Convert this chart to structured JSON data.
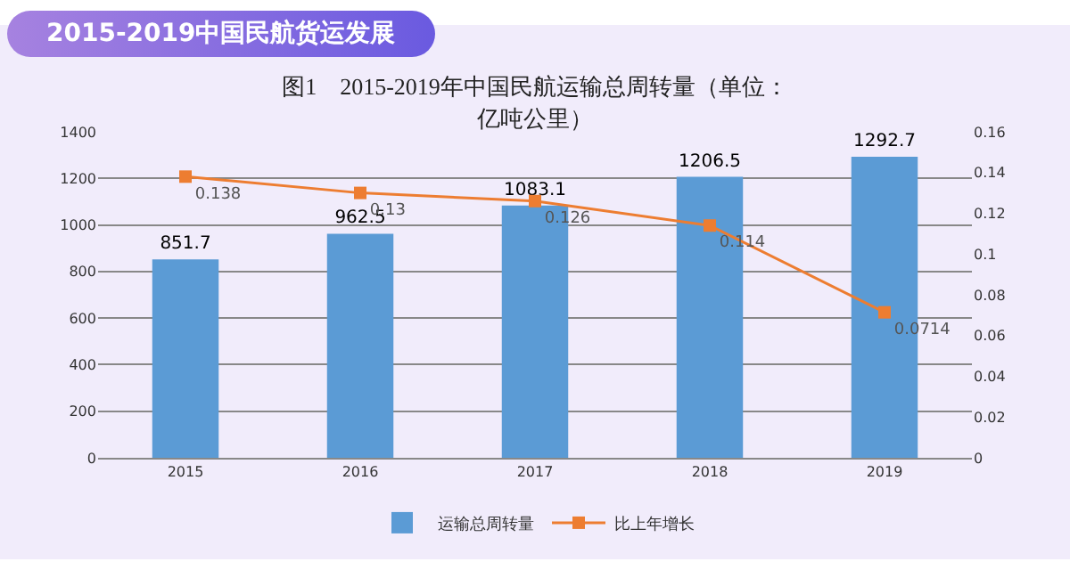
{
  "chart_data": {
    "type": "bar",
    "title": "2015-2019中国民航货运发展",
    "subtitle": "图1　2015-2019年中国民航运输总周转量（单位：亿吨公里）",
    "categories": [
      "2015",
      "2016",
      "2017",
      "2018",
      "2019"
    ],
    "series": [
      {
        "name": "运输总周转量",
        "color": "#5b9bd5",
        "values": [
          851.7,
          962.5,
          1083.1,
          1206.5,
          1292.7
        ]
      },
      {
        "name": "比上年增长",
        "type": "line",
        "axis": "y2",
        "color": "#ed7d31",
        "values": [
          0.138,
          0.13,
          0.126,
          0.114,
          0.0714
        ]
      }
    ],
    "ylim": [
      0,
      1400
    ],
    "yticks": [
      0,
      200,
      400,
      600,
      800,
      1000,
      1200,
      1400
    ],
    "y2lim": [
      0,
      0.16
    ],
    "y2ticks": [
      0,
      0.02,
      0.04,
      0.06,
      0.08,
      0.1,
      0.12,
      0.14,
      0.16
    ],
    "data_labels": true,
    "grid": "y",
    "legend": "bottom",
    "marker": "square",
    "line_style": "solid"
  }
}
